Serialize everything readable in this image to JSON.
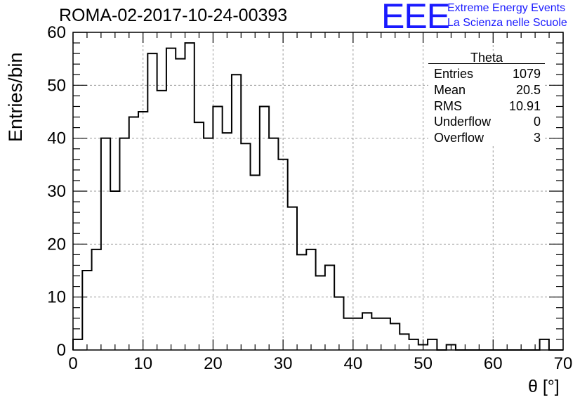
{
  "header": {
    "title": "ROMA-02-2017-10-24-00393"
  },
  "logo": {
    "mark": "EEE",
    "line1": "Extreme Energy Events",
    "line2": "La Scienza nelle Scuole",
    "color": "#1a1aff"
  },
  "stats_box": {
    "name": "Theta",
    "rows": [
      {
        "label": "Entries",
        "value": "1079"
      },
      {
        "label": "Mean",
        "value": "20.5"
      },
      {
        "label": "RMS",
        "value": "10.91"
      },
      {
        "label": "Underflow",
        "value": "0"
      },
      {
        "label": "Overflow",
        "value": "3"
      }
    ]
  },
  "chart_data": {
    "type": "histogram",
    "title": "ROMA-02-2017-10-24-00393",
    "xlabel": "θ [°]",
    "ylabel": "Entries/bin",
    "xlim": [
      0,
      70
    ],
    "ylim": [
      0,
      60
    ],
    "bin_width": 1.333,
    "bin_edges_start": 0,
    "values": [
      2,
      15,
      19,
      40,
      30,
      40,
      44,
      45,
      56,
      49,
      57,
      55,
      58,
      43,
      40,
      46,
      41,
      52,
      39,
      33,
      46,
      40,
      36,
      27,
      18,
      19,
      14,
      16,
      10,
      6,
      6,
      7,
      6,
      6,
      5,
      3,
      2,
      1,
      2,
      0,
      1,
      0,
      0,
      0,
      0,
      0,
      0,
      0,
      0,
      0,
      2,
      0
    ],
    "x_ticks": [
      0,
      10,
      20,
      30,
      40,
      50,
      60,
      70
    ],
    "y_ticks": [
      0,
      10,
      20,
      30,
      40,
      50,
      60
    ],
    "grid": true,
    "line_color": "#000000"
  }
}
